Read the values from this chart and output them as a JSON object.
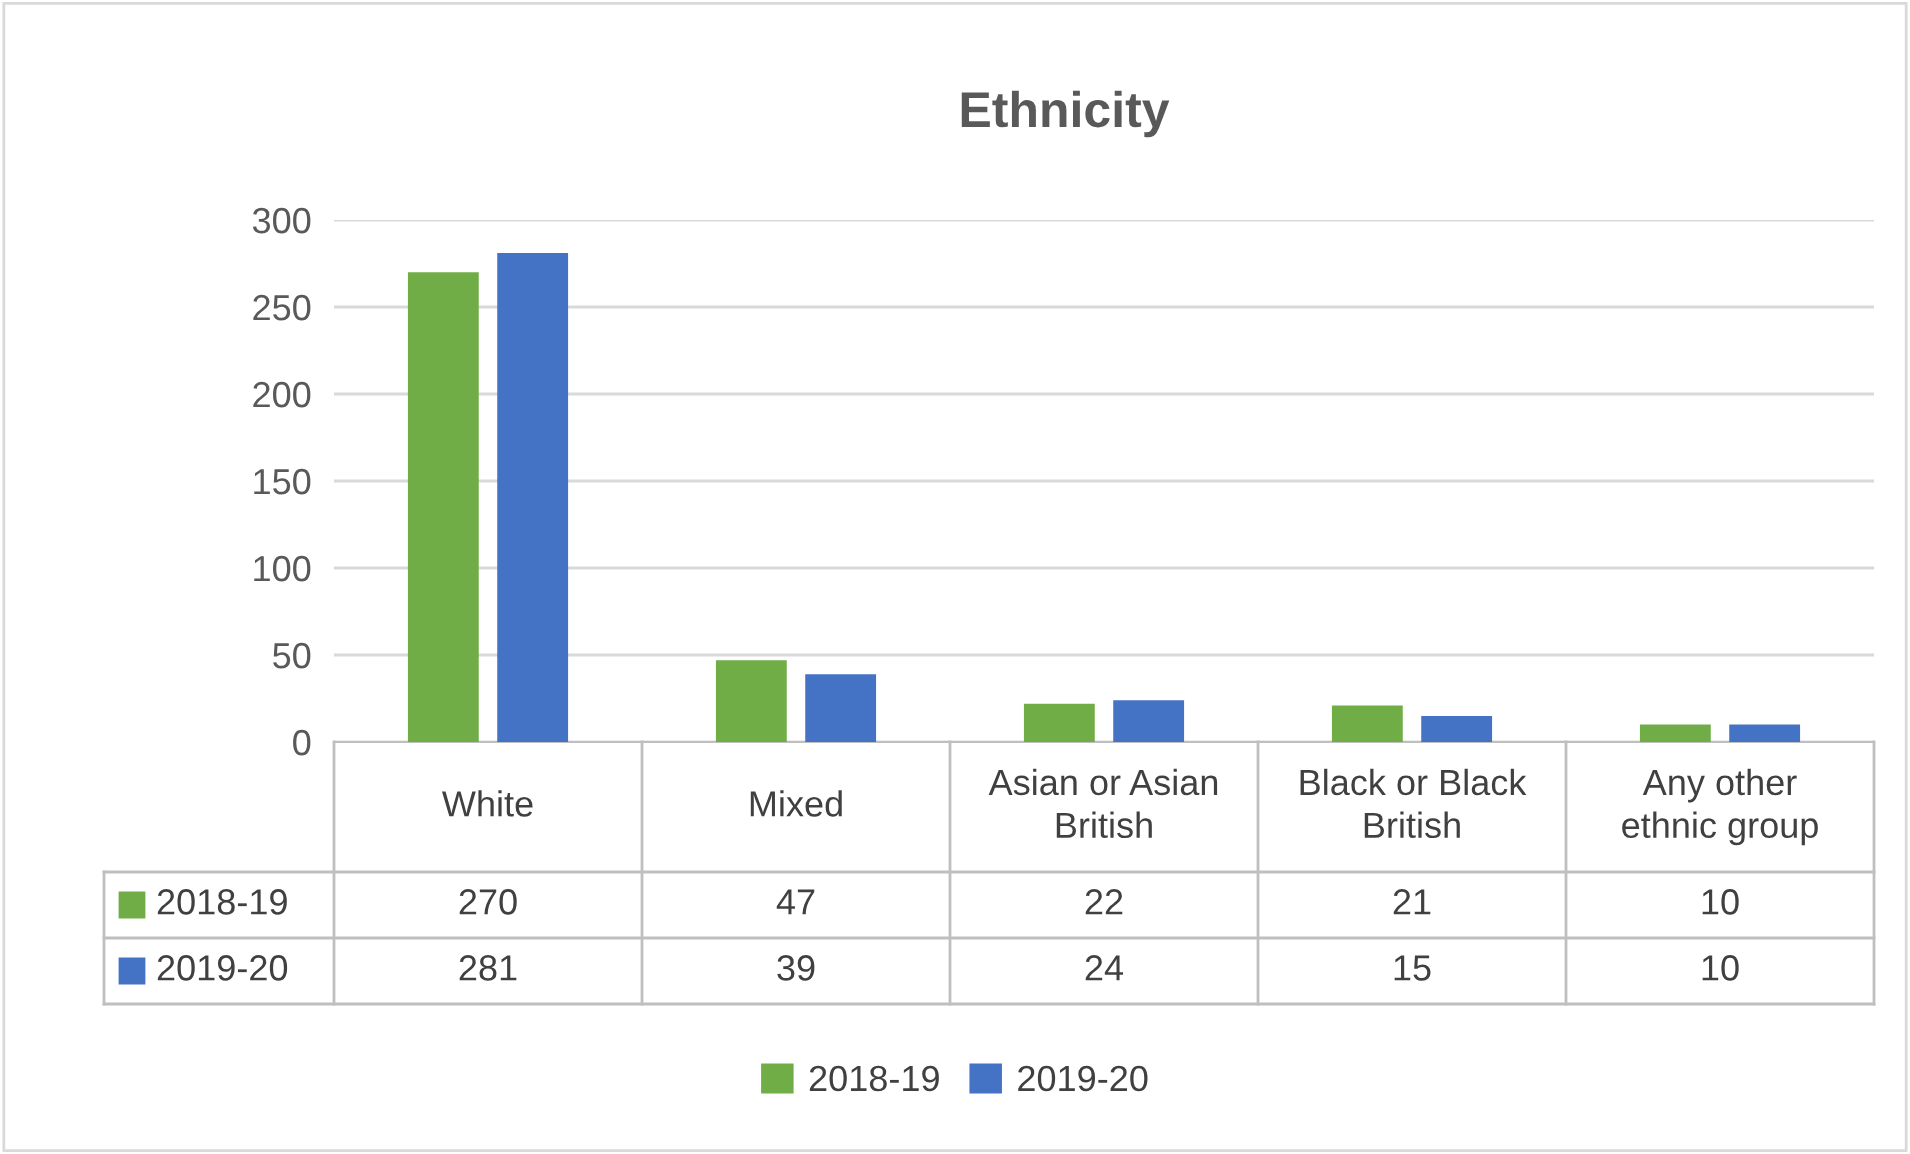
{
  "chart_data": {
    "type": "bar",
    "title": "Ethnicity",
    "categories": [
      "White",
      "Mixed",
      "Asian or Asian\nBritish",
      "Black or Black\nBritish",
      "Any other\nethnic group"
    ],
    "series": [
      {
        "name": "2018-19",
        "color": "#70ad47",
        "values": [
          270,
          47,
          22,
          21,
          10
        ]
      },
      {
        "name": "2019-20",
        "color": "#4472c4",
        "values": [
          281,
          39,
          24,
          15,
          10
        ]
      }
    ],
    "ylim": [
      0,
      300
    ],
    "yticks": [
      0,
      50,
      100,
      150,
      200,
      250,
      300
    ],
    "grid": "y",
    "legend": "bottom",
    "data_labels": true
  }
}
